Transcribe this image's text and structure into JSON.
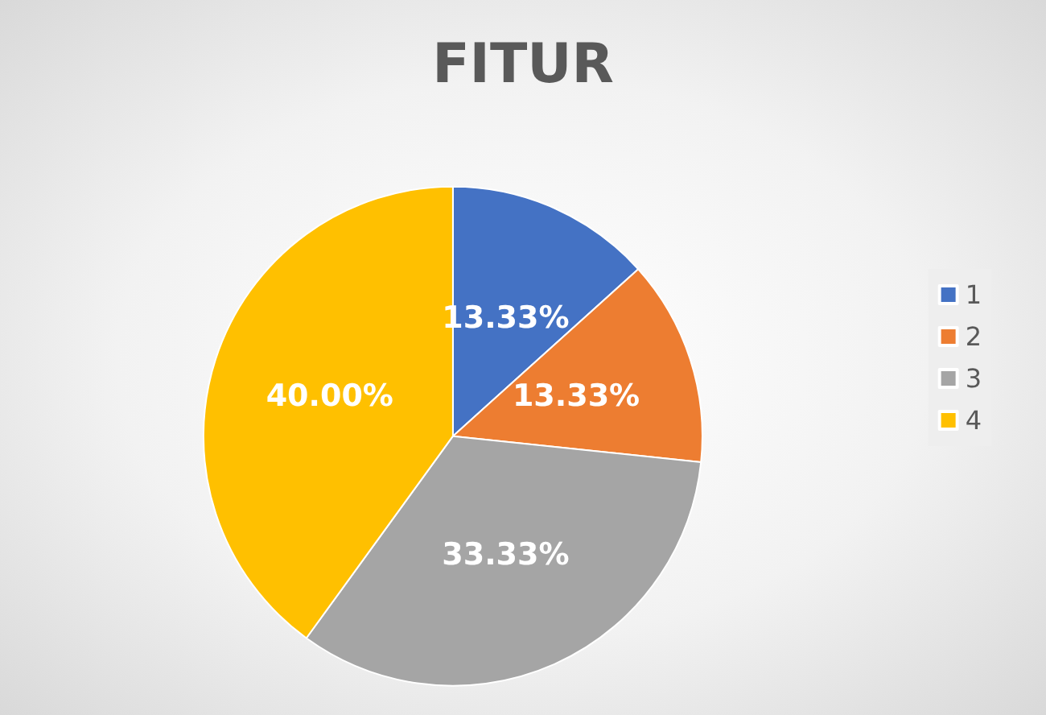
{
  "chart_data": {
    "type": "pie",
    "title": "FITUR",
    "categories": [
      "1",
      "2",
      "3",
      "4"
    ],
    "values": [
      13.33,
      13.33,
      33.33,
      40.0
    ],
    "value_labels": [
      "13.33%",
      "13.33%",
      "33.33%",
      "40.00%"
    ],
    "colors": [
      "#4472c4",
      "#ed7d31",
      "#a5a5a5",
      "#ffc000"
    ],
    "legend": "right"
  }
}
